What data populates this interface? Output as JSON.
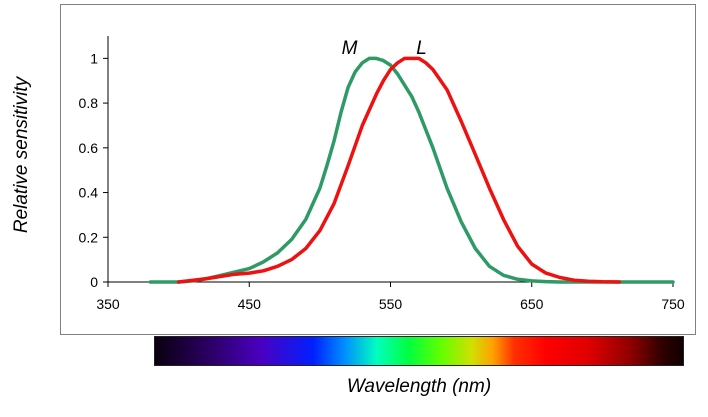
{
  "chart_data": {
    "type": "line",
    "title": "",
    "xlabel": "Wavelength (nm)",
    "ylabel": "Relative sensitivity",
    "xlim": [
      350,
      750
    ],
    "ylim": [
      0,
      1.1
    ],
    "x_ticks": [
      "350",
      "450",
      "550",
      "650",
      "750"
    ],
    "y_ticks": [
      "0",
      "0.2",
      "0.4",
      "0.6",
      "0.8",
      "1"
    ],
    "series": [
      {
        "name": "M",
        "color": "#2e9a66",
        "x": [
          380,
          400,
          410,
          420,
          430,
          440,
          450,
          460,
          470,
          480,
          490,
          500,
          505,
          510,
          515,
          520,
          525,
          530,
          535,
          540,
          545,
          550,
          555,
          560,
          565,
          570,
          580,
          590,
          600,
          610,
          620,
          630,
          640,
          650,
          660,
          670,
          680,
          700,
          750
        ],
        "y": [
          0,
          0,
          0.005,
          0.015,
          0.03,
          0.045,
          0.06,
          0.09,
          0.13,
          0.19,
          0.28,
          0.42,
          0.52,
          0.63,
          0.76,
          0.87,
          0.94,
          0.98,
          1.0,
          1.0,
          0.99,
          0.97,
          0.93,
          0.88,
          0.83,
          0.76,
          0.6,
          0.42,
          0.27,
          0.15,
          0.07,
          0.03,
          0.012,
          0.005,
          0.002,
          0,
          0,
          0,
          0
        ]
      },
      {
        "name": "L",
        "color": "#ee1111",
        "x": [
          400,
          420,
          430,
          440,
          450,
          460,
          470,
          480,
          490,
          500,
          510,
          520,
          530,
          540,
          545,
          550,
          555,
          560,
          565,
          570,
          575,
          580,
          590,
          600,
          610,
          620,
          630,
          640,
          650,
          660,
          670,
          680,
          690,
          700,
          712
        ],
        "y": [
          0,
          0.015,
          0.025,
          0.035,
          0.04,
          0.05,
          0.07,
          0.1,
          0.15,
          0.23,
          0.35,
          0.52,
          0.7,
          0.84,
          0.9,
          0.95,
          0.98,
          1.0,
          1.0,
          1.0,
          0.98,
          0.95,
          0.86,
          0.72,
          0.57,
          0.42,
          0.28,
          0.16,
          0.08,
          0.04,
          0.02,
          0.008,
          0.003,
          0.001,
          0
        ]
      }
    ],
    "annotations": [
      {
        "text": "M",
        "x": 521,
        "y": 1.05
      },
      {
        "text": "L",
        "x": 572,
        "y": 1.05
      }
    ],
    "grid": false,
    "legend": "none"
  },
  "spectrum_bar": {
    "range": [
      380,
      780
    ]
  }
}
